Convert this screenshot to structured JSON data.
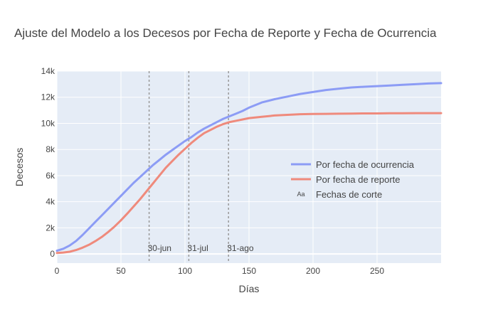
{
  "chart_data": {
    "type": "line",
    "title": "Ajuste del Modelo a los Decesos por Fecha de Reporte y Fecha de Ocurrencia",
    "xlabel": "Días",
    "ylabel": "Decesos",
    "xlim": [
      0,
      300
    ],
    "ylim": [
      -700,
      14000
    ],
    "x_ticks": [
      0,
      50,
      100,
      150,
      200,
      250
    ],
    "x_tick_labels": [
      "0",
      "50",
      "100",
      "150",
      "200",
      "250"
    ],
    "y_ticks": [
      0,
      2000,
      4000,
      6000,
      8000,
      10000,
      12000,
      14000
    ],
    "y_tick_labels": [
      "0",
      "2k",
      "4k",
      "6k",
      "8k",
      "10k",
      "12k",
      "14k"
    ],
    "grid": true,
    "legend_position": "right",
    "series": [
      {
        "name": "Por fecha de ocurrencia",
        "color": "#8c9cf5",
        "x": [
          0,
          5,
          10,
          15,
          20,
          25,
          30,
          35,
          40,
          45,
          50,
          55,
          60,
          65,
          70,
          75,
          80,
          85,
          90,
          95,
          100,
          105,
          110,
          115,
          120,
          125,
          130,
          135,
          140,
          145,
          150,
          160,
          170,
          180,
          190,
          200,
          210,
          220,
          230,
          240,
          250,
          260,
          270,
          280,
          290,
          300
        ],
        "y": [
          250,
          400,
          650,
          1000,
          1450,
          1950,
          2450,
          2950,
          3450,
          3950,
          4450,
          4950,
          5450,
          5900,
          6350,
          6800,
          7200,
          7600,
          7950,
          8300,
          8650,
          8950,
          9300,
          9600,
          9850,
          10100,
          10350,
          10550,
          10750,
          10950,
          11200,
          11600,
          11850,
          12050,
          12250,
          12400,
          12550,
          12650,
          12750,
          12800,
          12850,
          12900,
          12950,
          13000,
          13050,
          13080
        ]
      },
      {
        "name": "Por fecha de reporte",
        "color": "#ef8a7c",
        "x": [
          0,
          5,
          10,
          15,
          20,
          25,
          30,
          35,
          40,
          45,
          50,
          55,
          60,
          65,
          70,
          75,
          80,
          85,
          90,
          95,
          100,
          105,
          110,
          115,
          120,
          125,
          130,
          135,
          140,
          145,
          150,
          160,
          170,
          180,
          190,
          200,
          210,
          220,
          230,
          240,
          250,
          260,
          270,
          280,
          290,
          300
        ],
        "y": [
          80,
          110,
          170,
          300,
          480,
          700,
          980,
          1300,
          1680,
          2100,
          2580,
          3100,
          3650,
          4200,
          4800,
          5400,
          6000,
          6600,
          7100,
          7600,
          8050,
          8500,
          8900,
          9250,
          9500,
          9750,
          9950,
          10100,
          10200,
          10300,
          10400,
          10500,
          10600,
          10650,
          10700,
          10720,
          10730,
          10740,
          10750,
          10760,
          10760,
          10770,
          10770,
          10780,
          10780,
          10780
        ]
      }
    ],
    "cutoffs": {
      "name": "Fechas de corte",
      "color": "#999999",
      "x": [
        72,
        103,
        134
      ],
      "labels": [
        "30-jun",
        "31-jul",
        "31-ago"
      ]
    },
    "legend_marker": "Aa"
  }
}
